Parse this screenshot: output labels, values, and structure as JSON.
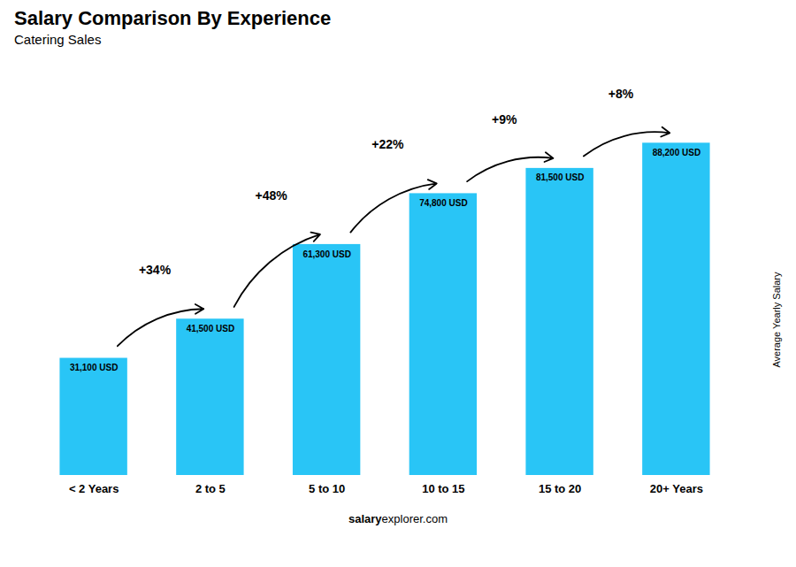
{
  "chart_data": {
    "type": "bar",
    "title": "Salary Comparison By Experience",
    "subtitle": "Catering Sales",
    "categories": [
      "< 2 Years",
      "2 to 5",
      "5 to 10",
      "10 to 15",
      "15 to 20",
      "20+ Years"
    ],
    "values": [
      31100,
      41500,
      61300,
      74800,
      81500,
      88200
    ],
    "value_labels": [
      "31,100 USD",
      "41,500 USD",
      "61,300 USD",
      "74,800 USD",
      "81,500 USD",
      "88,200 USD"
    ],
    "data_labels": true,
    "color": "#29c5f6",
    "ylabel": "Average Yearly Salary",
    "ylim": [
      0,
      108000
    ],
    "tick_labels": "x",
    "grid": false,
    "annotations": [
      "+34%",
      "+48%",
      "+22%",
      "+9%",
      "+8%"
    ],
    "footer": [
      "salary",
      "explorer.com"
    ]
  }
}
